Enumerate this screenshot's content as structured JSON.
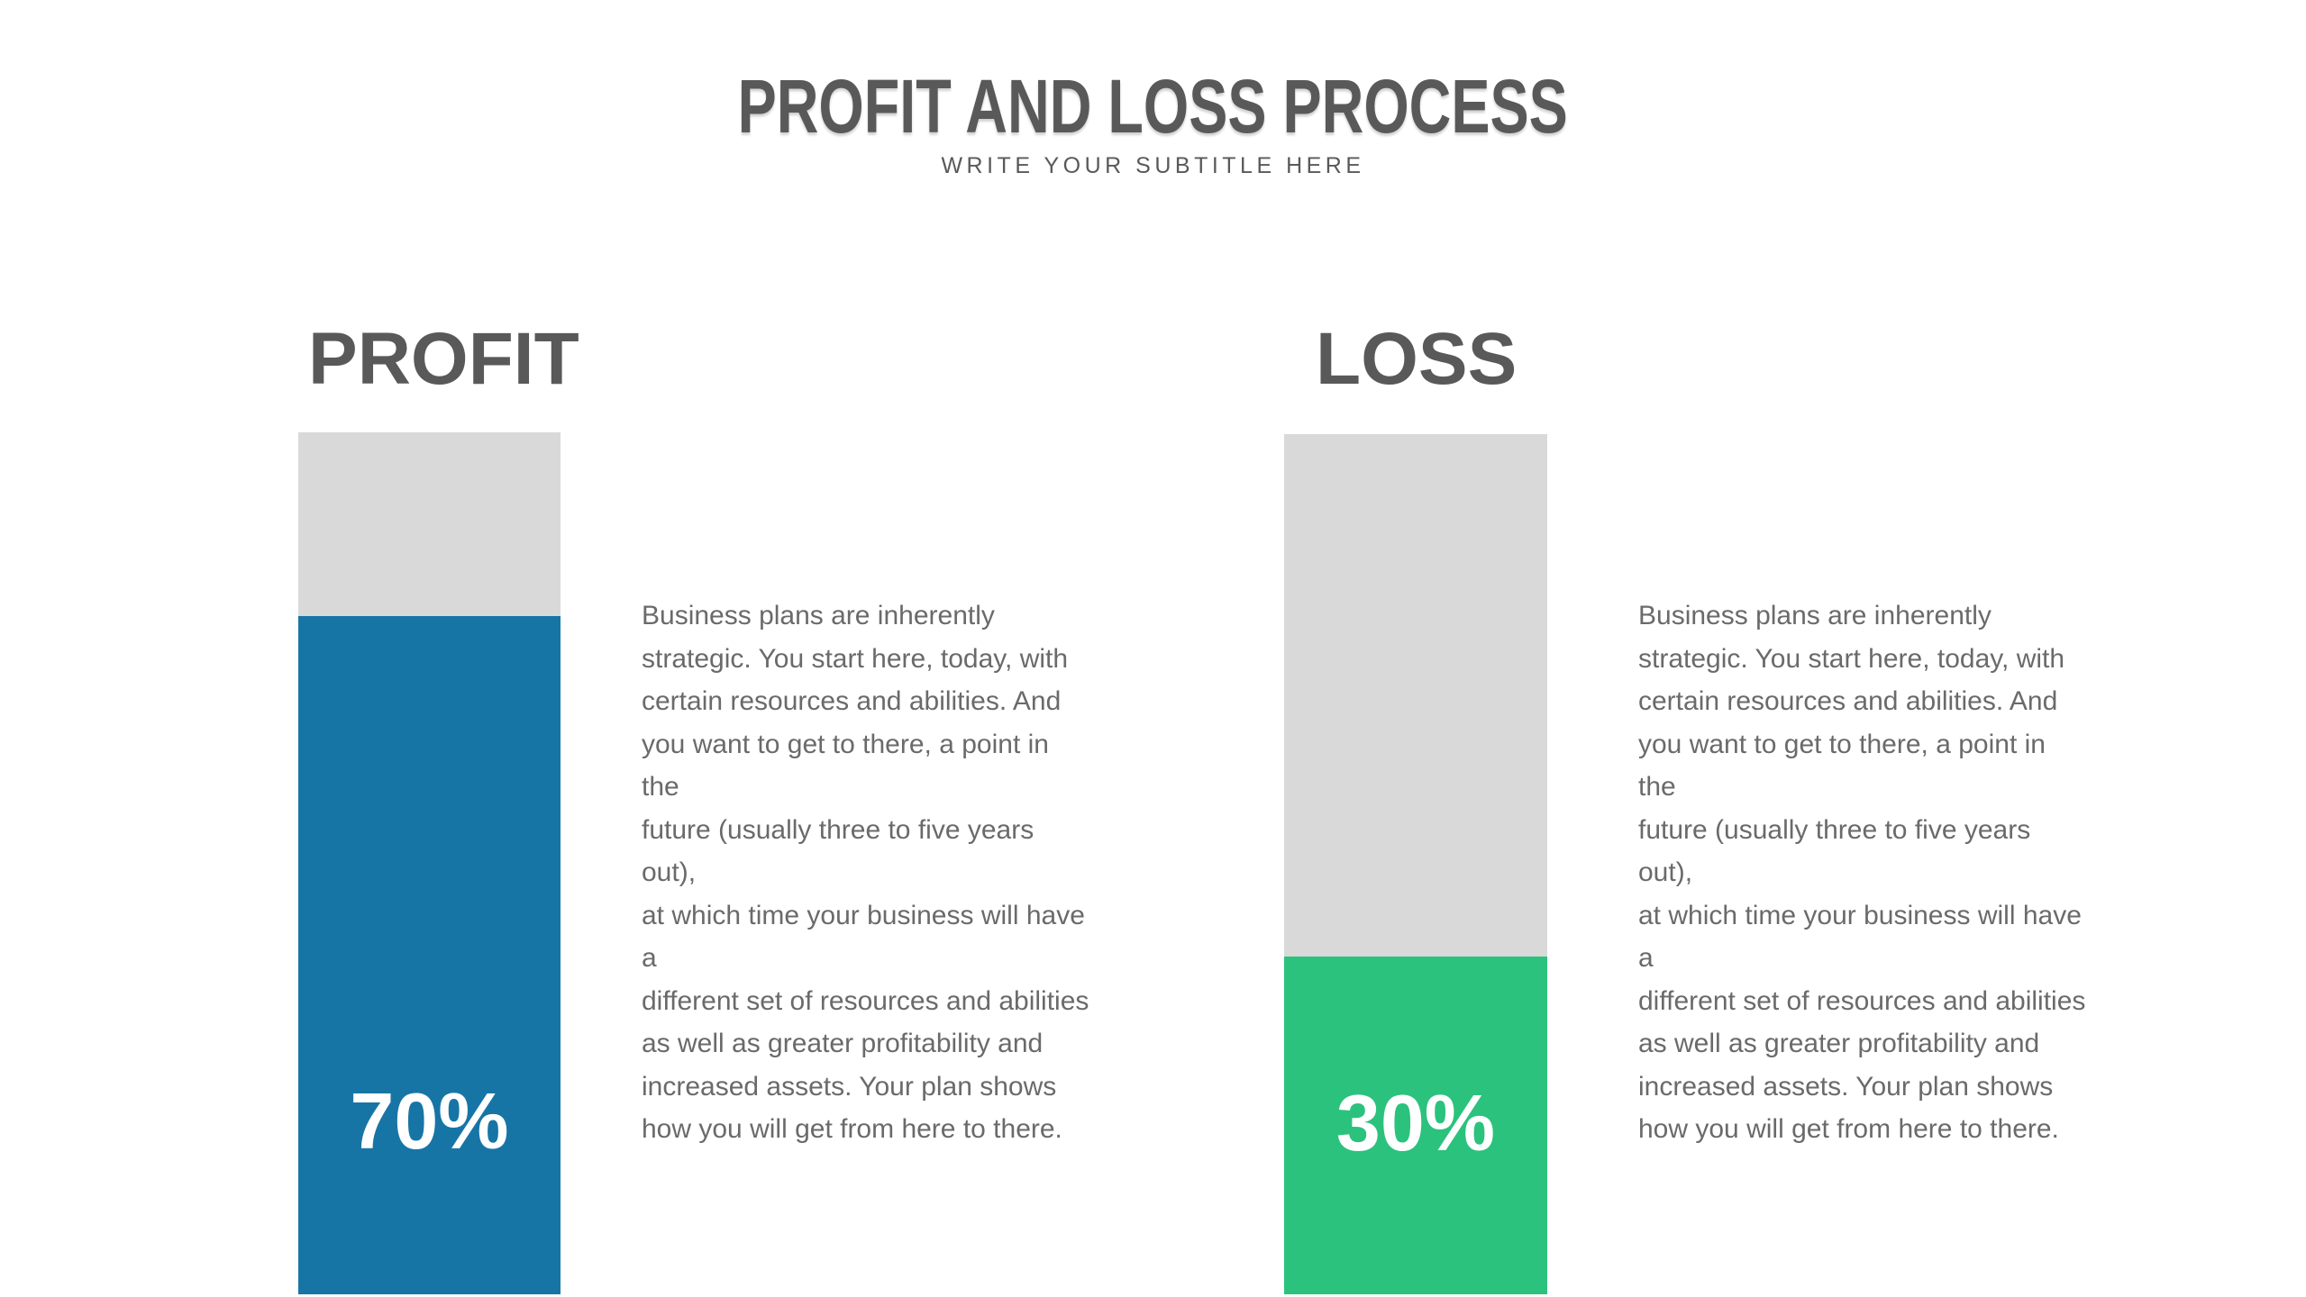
{
  "header": {
    "title": "PROFIT AND LOSS PROCESS",
    "subtitle": "WRITE YOUR SUBTITLE HERE"
  },
  "columns": [
    {
      "id": "profit",
      "heading": "PROFIT",
      "percent_label": "70%",
      "percent_value": 70,
      "bar_color": "#1775A6",
      "track_color": "#d9d9d9",
      "description": "Business plans are inherently\nstrategic. You start here, today, with\ncertain resources and abilities. And\nyou want to get to there, a point in the\nfuture (usually three to five years out),\nat which time your business will have a\ndifferent set of resources and abilities\nas well as greater profitability and\nincreased assets. Your plan shows\nhow you will get from here to there."
    },
    {
      "id": "loss",
      "heading": "LOSS",
      "percent_label": "30%",
      "percent_value": 30,
      "bar_color": "#2BC27D",
      "track_color": "#d9d9d9",
      "description": "Business plans are inherently\nstrategic. You start here, today, with\ncertain resources and abilities. And\nyou want to get to there, a point in the\nfuture (usually three to five years out),\nat which time your business will have a\ndifferent set of resources and abilities\nas well as greater profitability and\nincreased assets. Your plan shows\nhow you will get from here to there."
    }
  ],
  "colors": {
    "title_text": "#595959",
    "heading_text": "#595959",
    "body_text": "#6a6a6a",
    "profit_bar": "#1775A6",
    "loss_bar": "#2BC27D",
    "bar_track": "#d9d9d9",
    "percent_text": "#ffffff",
    "background": "#ffffff"
  },
  "chart_data": {
    "type": "bar",
    "title": "PROFIT AND LOSS PROCESS",
    "subtitle": "WRITE YOUR SUBTITLE HERE",
    "categories": [
      "PROFIT",
      "LOSS"
    ],
    "values": [
      70,
      30
    ],
    "unit": "%",
    "orientation": "vertical",
    "ylim": [
      0,
      100
    ],
    "grid": false,
    "legend": "none",
    "series_colors": [
      "#1775A6",
      "#2BC27D"
    ],
    "track_color": "#d9d9d9",
    "data_labels": [
      "70%",
      "30%"
    ]
  }
}
